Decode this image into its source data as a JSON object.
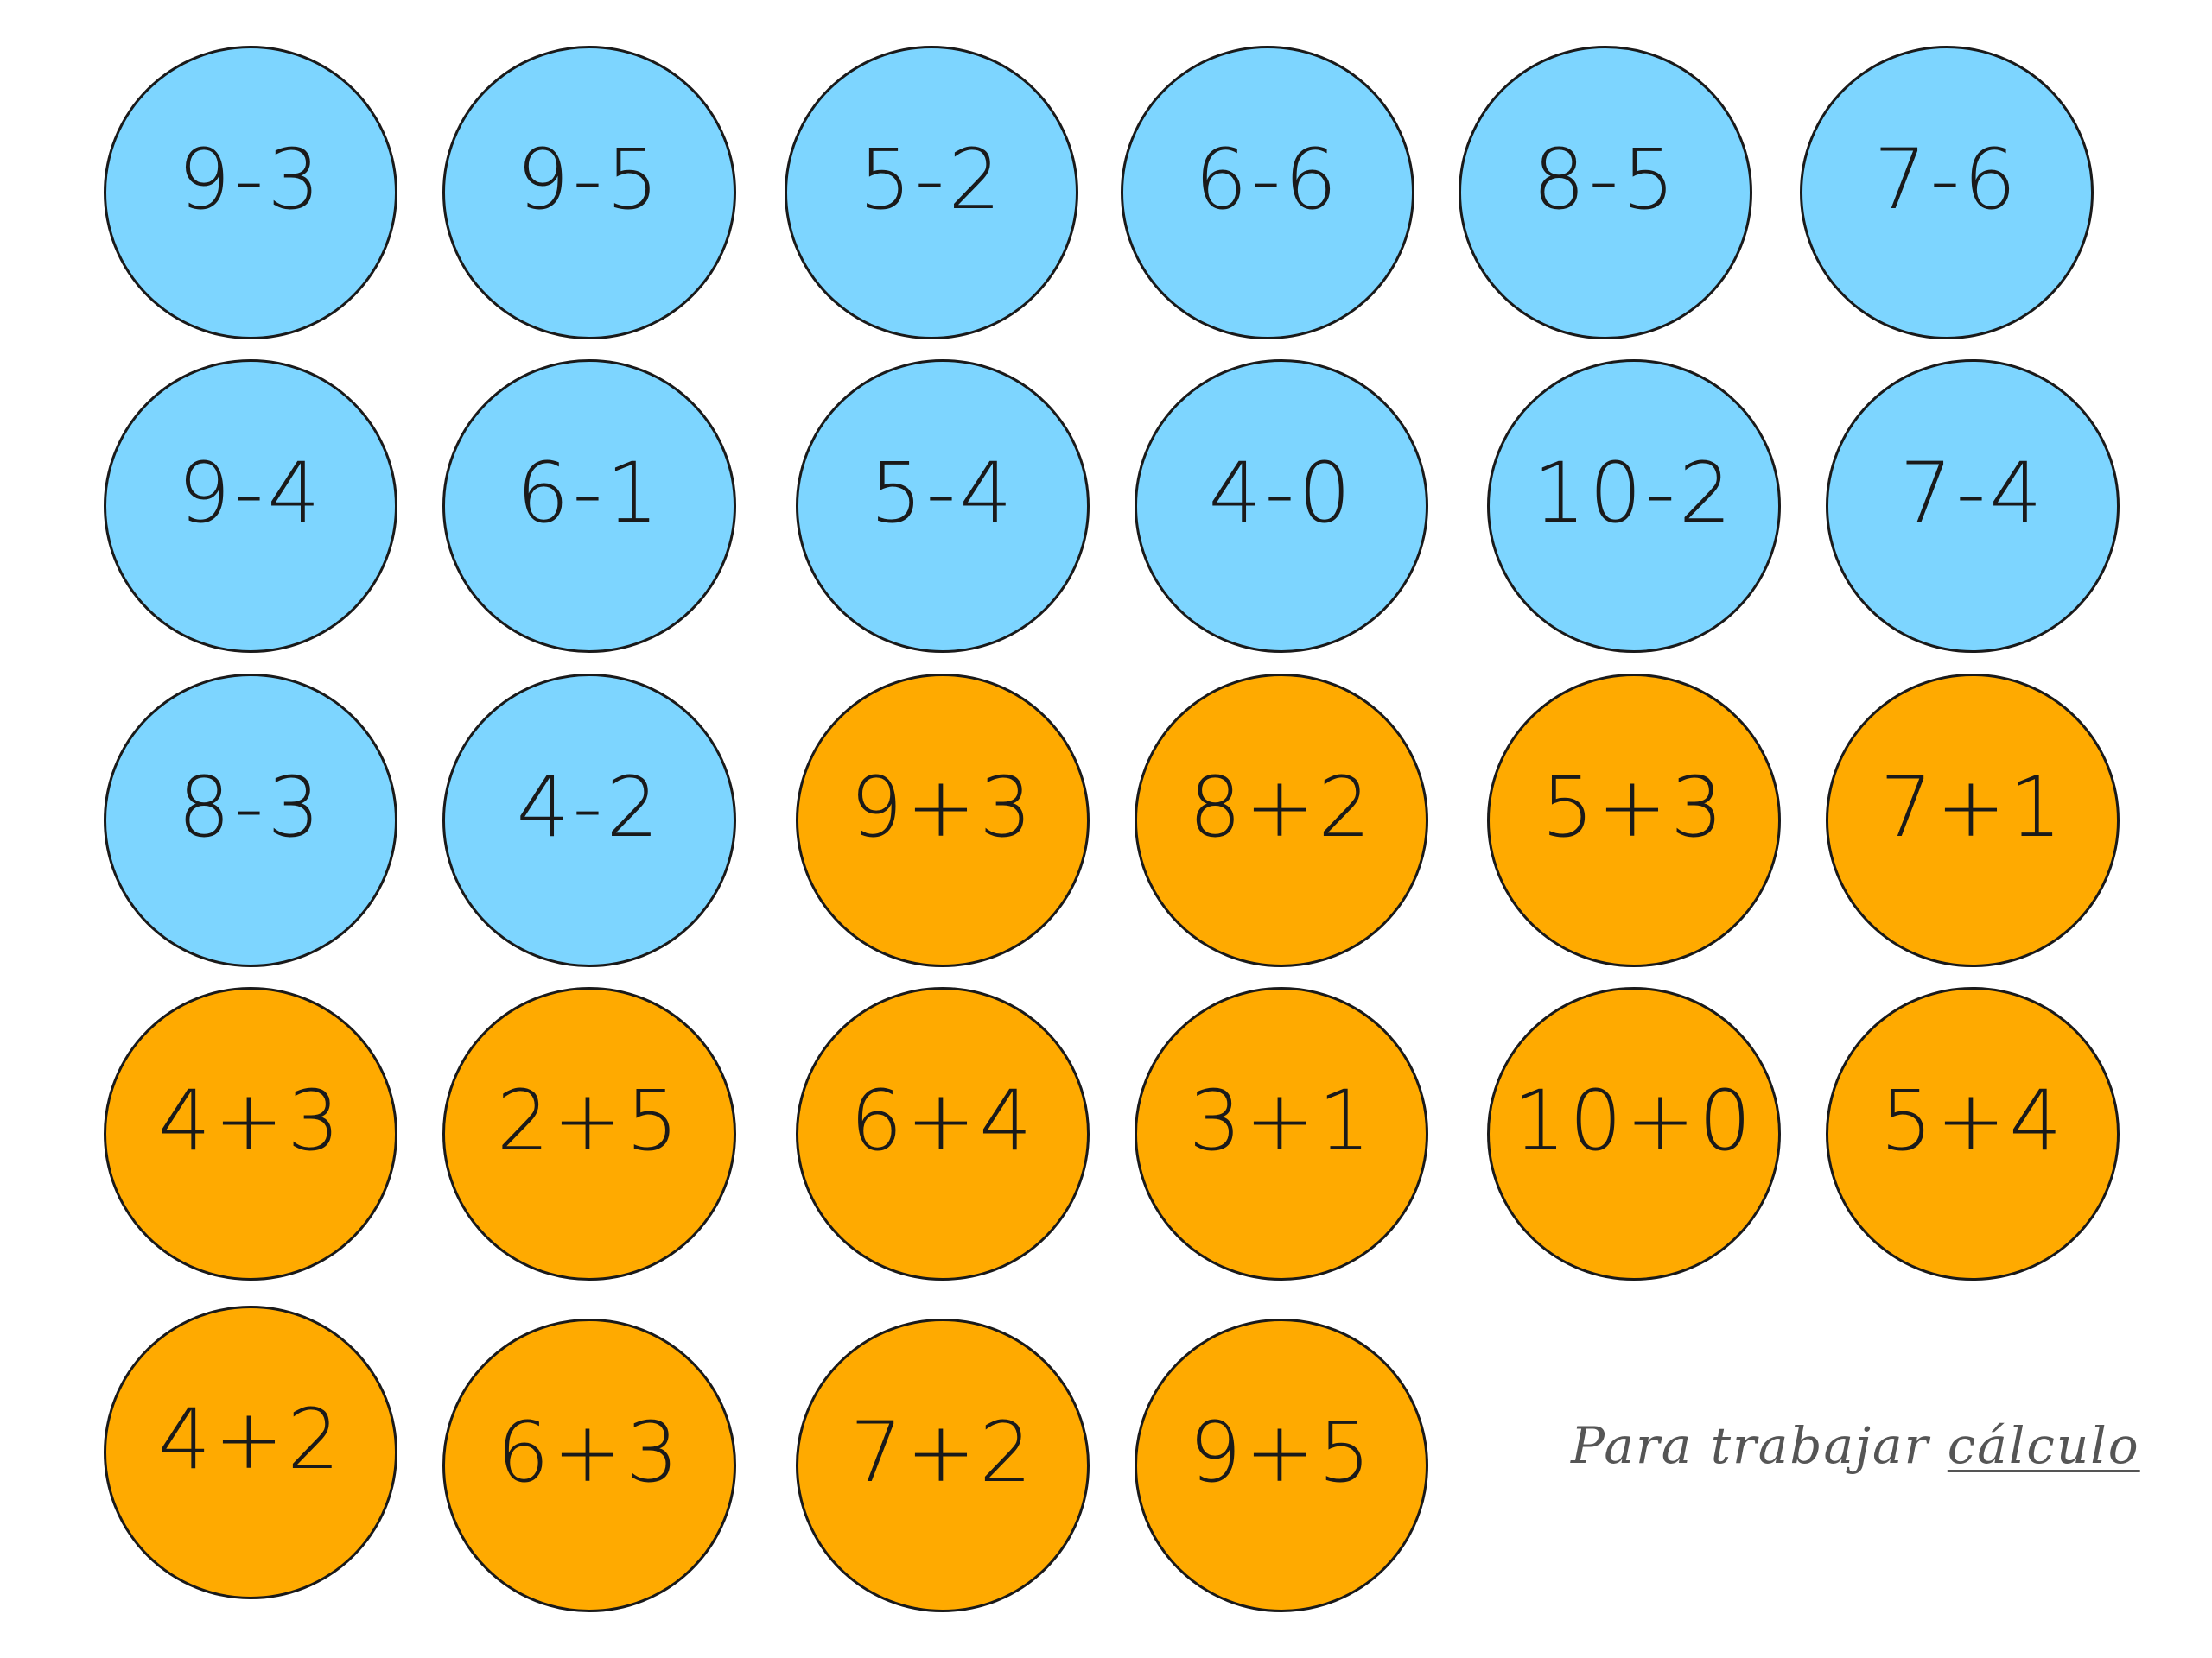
{
  "colors": {
    "subtraction": "#7DD5FF",
    "addition": "#FFAA00",
    "border": "#1a1a1a",
    "text": "#1a1a1a",
    "caption": "#555555"
  },
  "cards": [
    {
      "expr": "9-3",
      "type": "subtraction"
    },
    {
      "expr": "9-5",
      "type": "subtraction"
    },
    {
      "expr": "5-2",
      "type": "subtraction"
    },
    {
      "expr": "6-6",
      "type": "subtraction"
    },
    {
      "expr": "8-5",
      "type": "subtraction"
    },
    {
      "expr": "7-6",
      "type": "subtraction"
    },
    {
      "expr": "9-4",
      "type": "subtraction"
    },
    {
      "expr": "6-1",
      "type": "subtraction"
    },
    {
      "expr": "5-4",
      "type": "subtraction"
    },
    {
      "expr": "4-0",
      "type": "subtraction"
    },
    {
      "expr": "10-2",
      "type": "subtraction"
    },
    {
      "expr": "7-4",
      "type": "subtraction"
    },
    {
      "expr": "8-3",
      "type": "subtraction"
    },
    {
      "expr": "4-2",
      "type": "subtraction"
    },
    {
      "expr": "9+3",
      "type": "addition"
    },
    {
      "expr": "8+2",
      "type": "addition"
    },
    {
      "expr": "5+3",
      "type": "addition"
    },
    {
      "expr": "7+1",
      "type": "addition"
    },
    {
      "expr": "4+3",
      "type": "addition"
    },
    {
      "expr": "2+5",
      "type": "addition"
    },
    {
      "expr": "6+4",
      "type": "addition"
    },
    {
      "expr": "3+1",
      "type": "addition"
    },
    {
      "expr": "10+0",
      "type": "addition"
    },
    {
      "expr": "5+4",
      "type": "addition"
    },
    {
      "expr": "4+2",
      "type": "addition"
    },
    {
      "expr": "6+3",
      "type": "addition"
    },
    {
      "expr": "7+2",
      "type": "addition"
    },
    {
      "expr": "9+5",
      "type": "addition"
    }
  ],
  "caption": {
    "prefix": "Para trabajar ",
    "underlined": "cálculo"
  }
}
